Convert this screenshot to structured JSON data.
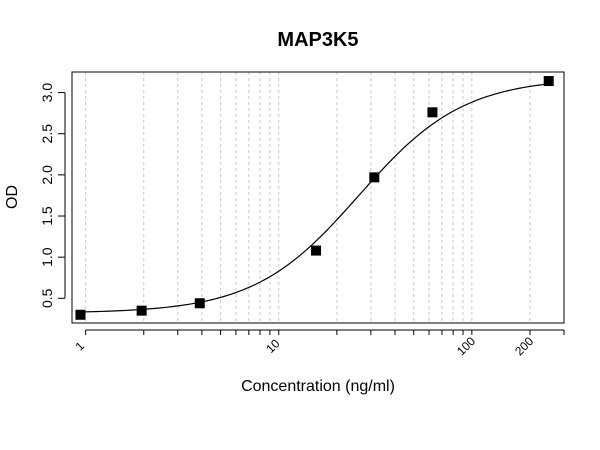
{
  "chart_data": {
    "type": "scatter",
    "title": "MAP3K5",
    "xlabel": "Concentration (ng/ml)",
    "ylabel": "OD",
    "x_scale": "log",
    "xlim": [
      0.85,
      300
    ],
    "ylim": [
      0.2,
      3.25
    ],
    "x_ticks": [
      1,
      10,
      100,
      200
    ],
    "x_tick_labels": [
      "1",
      "10",
      "100",
      "200"
    ],
    "y_ticks": [
      0.5,
      1.0,
      1.5,
      2.0,
      2.5,
      3.0
    ],
    "y_tick_labels": [
      "0.5",
      "1.0",
      "1.5",
      "2.0",
      "2.5",
      "3.0"
    ],
    "grid": "vertical dashed lines at log minor ticks",
    "series": [
      {
        "marker": "square",
        "color": "#000000",
        "x": [
          0.94,
          1.95,
          3.9,
          15.6,
          31.25,
          62.5,
          250
        ],
        "y": [
          0.3,
          0.35,
          0.44,
          1.08,
          1.97,
          2.76,
          3.14
        ]
      }
    ],
    "fit_curve": {
      "model": "4PL",
      "bottom": 0.32,
      "top": 3.18,
      "ec50": 26,
      "hill": 1.6
    }
  }
}
